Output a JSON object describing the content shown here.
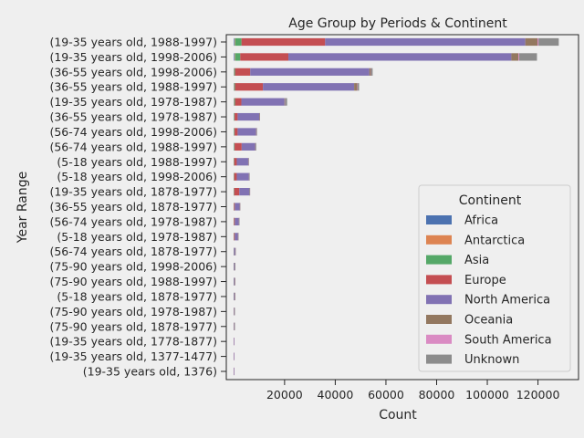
{
  "chart_data": {
    "type": "bar",
    "orientation": "horizontal",
    "stacked": true,
    "title": "Age Group by Periods & Continent",
    "xlabel": "Count",
    "ylabel": "Year Range",
    "xlim": [
      -3000,
      136000
    ],
    "xticks": [
      20000,
      40000,
      60000,
      80000,
      100000,
      120000
    ],
    "xtick_labels": [
      "20000",
      "40000",
      "60000",
      "80000",
      "100000",
      "120000"
    ],
    "grid": false,
    "legend": {
      "title": "Continent",
      "position": "lower-right"
    },
    "categories": [
      "(19-35 years old, 1988-1997)",
      "(19-35 years old, 1998-2006)",
      "(36-55 years old, 1998-2006)",
      "(36-55 years old, 1988-1997)",
      "(19-35 years old, 1978-1987)",
      "(36-55 years old, 1978-1987)",
      "(56-74 years old, 1998-2006)",
      "(56-74 years old, 1988-1997)",
      "(5-18 years old, 1988-1997)",
      "(5-18 years old, 1998-2006)",
      "(19-35 years old, 1878-1977)",
      "(36-55 years old, 1878-1977)",
      "(56-74 years old, 1978-1987)",
      "(5-18 years old, 1978-1987)",
      "(56-74 years old, 1878-1977)",
      "(75-90 years old, 1998-2006)",
      "(75-90 years old, 1988-1997)",
      "(5-18 years old, 1878-1977)",
      "(75-90 years old, 1978-1987)",
      "(75-90 years old, 1878-1977)",
      "(19-35 years old, 1778-1877)",
      "(19-35 years old, 1377-1477)",
      "(19-35 years old, 1376)"
    ],
    "series": [
      {
        "name": "Africa",
        "color": "#4c72b0",
        "values": [
          300,
          300,
          100,
          100,
          100,
          50,
          50,
          50,
          20,
          20,
          20,
          10,
          10,
          10,
          5,
          5,
          5,
          5,
          2,
          2,
          0,
          0,
          0
        ]
      },
      {
        "name": "Antarctica",
        "color": "#dd8452",
        "values": [
          200,
          200,
          50,
          50,
          50,
          20,
          20,
          20,
          10,
          10,
          10,
          5,
          5,
          5,
          0,
          0,
          0,
          0,
          0,
          0,
          0,
          0,
          0
        ]
      },
      {
        "name": "Asia",
        "color": "#55a868",
        "values": [
          2500,
          2000,
          300,
          300,
          300,
          200,
          200,
          200,
          100,
          100,
          100,
          50,
          50,
          50,
          10,
          10,
          10,
          10,
          5,
          5,
          0,
          0,
          0
        ]
      },
      {
        "name": "Europe",
        "color": "#c44e52",
        "values": [
          33000,
          19000,
          6000,
          11000,
          2500,
          1200,
          1200,
          2800,
          1000,
          1000,
          2000,
          300,
          300,
          300,
          50,
          50,
          50,
          50,
          20,
          20,
          5,
          2,
          1
        ]
      },
      {
        "name": "North America",
        "color": "#8172b3",
        "values": [
          79000,
          88000,
          47000,
          36000,
          17000,
          8500,
          7300,
          5300,
          4500,
          4800,
          4000,
          1900,
          1600,
          1200,
          400,
          300,
          250,
          250,
          150,
          150,
          30,
          10,
          5
        ]
      },
      {
        "name": "Oceania",
        "color": "#937860",
        "values": [
          4800,
          2800,
          600,
          1200,
          200,
          100,
          100,
          100,
          50,
          50,
          50,
          20,
          20,
          20,
          5,
          5,
          5,
          5,
          2,
          2,
          0,
          0,
          0
        ]
      },
      {
        "name": "South America",
        "color": "#da8bc3",
        "values": [
          400,
          300,
          100,
          150,
          50,
          30,
          30,
          30,
          10,
          10,
          10,
          5,
          5,
          5,
          2,
          2,
          2,
          2,
          1,
          1,
          0,
          0,
          0
        ]
      },
      {
        "name": "Unknown",
        "color": "#8c8c8c",
        "values": [
          8000,
          7000,
          600,
          600,
          800,
          200,
          200,
          300,
          100,
          100,
          100,
          50,
          50,
          50,
          10,
          10,
          10,
          10,
          5,
          5,
          0,
          0,
          0
        ]
      }
    ]
  }
}
